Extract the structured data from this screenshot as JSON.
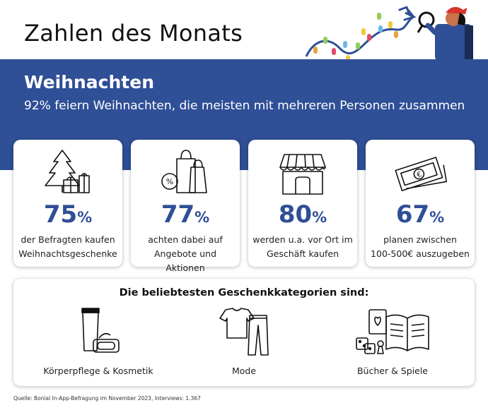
{
  "header": {
    "title": "Zahlen des Monats"
  },
  "band": {
    "title": "Weihnachten",
    "subtitle": "92% feiern Weihnachten, die meisten mit mehreren Personen zusammen"
  },
  "stats": [
    {
      "value": "75",
      "unit": "%",
      "line1": "der Befragten kaufen",
      "line2": "Weihnachtsgeschenke",
      "icon": "christmas-tree-gifts-icon"
    },
    {
      "value": "77",
      "unit": "%",
      "line1": "achten dabei auf",
      "line2": "Angebote und Aktionen",
      "icon": "shopping-bags-discount-icon"
    },
    {
      "value": "80",
      "unit": "%",
      "line1": "werden u.a. vor Ort im",
      "line2": "Geschäft kaufen",
      "icon": "storefront-icon"
    },
    {
      "value": "67",
      "unit": "%",
      "line1": "planen zwischen",
      "line2": "100-500€ auszugeben",
      "icon": "banknotes-euro-icon"
    }
  ],
  "categories": {
    "title": "Die beliebtesten Geschenkkategorien sind:",
    "items": [
      {
        "label": "Körperpflege & Kosmetik",
        "icon": "cosmetics-icon"
      },
      {
        "label": "Mode",
        "icon": "clothing-icon"
      },
      {
        "label": "Bücher & Spiele",
        "icon": "books-games-icon"
      }
    ]
  },
  "source": "Quelle: Bonial In-App-Befragung im November 2023, Interviews: 1.367",
  "colors": {
    "brand_blue": "#2f4f96",
    "background": "#ffffff"
  }
}
